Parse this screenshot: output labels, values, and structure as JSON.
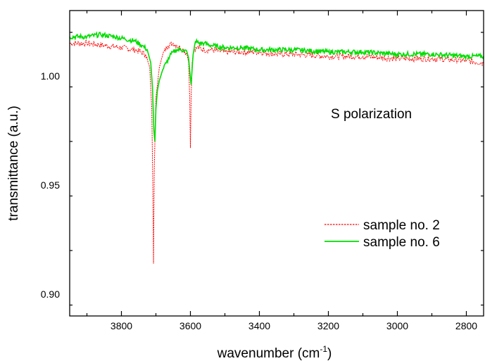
{
  "chart_data": {
    "type": "line",
    "xlabel": "wavenumber (cm",
    "xlabel_sup": "-1",
    "xlabel_end": ")",
    "ylabel": "transmittance (a.u.)",
    "annotation": "S polarization",
    "xlim": [
      3950,
      2750
    ],
    "ylim": [
      0.89,
      1.03
    ],
    "x_reversed": true,
    "x_ticks": [
      3800,
      3600,
      3400,
      3200,
      3000,
      2800
    ],
    "x_tick_labels": [
      "3800",
      "3600",
      "3400",
      "3200",
      "3000",
      "2800"
    ],
    "y_ticks": [
      0.9,
      0.95,
      1.0
    ],
    "y_tick_labels": [
      "0.90",
      "0.95",
      "1.00"
    ],
    "legend_position": "lower-right",
    "series": [
      {
        "name": "sample no. 2",
        "color": "#ff0000",
        "style": "dashed",
        "x": [
          3950,
          3900,
          3850,
          3800,
          3760,
          3730,
          3718,
          3712,
          3709,
          3707,
          3705,
          3700,
          3690,
          3680,
          3665,
          3650,
          3640,
          3630,
          3620,
          3610,
          3605,
          3602,
          3600,
          3598,
          3595,
          3590,
          3580,
          3560,
          3540,
          3500,
          3450,
          3400,
          3350,
          3300,
          3200,
          3100,
          3000,
          2900,
          2800,
          2750
        ],
        "y": [
          1.015,
          1.015,
          1.014,
          1.013,
          1.012,
          1.01,
          1.004,
          0.985,
          0.95,
          0.914,
          0.955,
          0.99,
          1.004,
          1.01,
          1.014,
          1.015,
          1.014,
          1.013,
          1.012,
          1.01,
          1.006,
          0.99,
          0.967,
          0.99,
          1.006,
          1.012,
          1.013,
          1.012,
          1.012,
          1.011,
          1.011,
          1.011,
          1.01,
          1.01,
          1.009,
          1.009,
          1.008,
          1.008,
          1.007,
          1.006
        ]
      },
      {
        "name": "sample no. 6",
        "color": "#00dd00",
        "style": "solid",
        "x": [
          3950,
          3900,
          3860,
          3820,
          3790,
          3760,
          3740,
          3725,
          3715,
          3710,
          3706,
          3703,
          3700,
          3696,
          3690,
          3680,
          3670,
          3660,
          3650,
          3640,
          3630,
          3620,
          3610,
          3605,
          3600,
          3598,
          3596,
          3592,
          3585,
          3575,
          3560,
          3540,
          3500,
          3450,
          3400,
          3350,
          3300,
          3200,
          3100,
          3000,
          2900,
          2800,
          2750
        ],
        "y": [
          1.018,
          1.018,
          1.019,
          1.018,
          1.017,
          1.016,
          1.014,
          1.012,
          1.006,
          0.995,
          0.975,
          0.97,
          0.985,
          0.993,
          0.998,
          1.003,
          1.006,
          1.009,
          1.011,
          1.012,
          1.012,
          1.012,
          1.011,
          1.008,
          0.999,
          0.996,
          1.001,
          1.01,
          1.016,
          1.015,
          1.015,
          1.014,
          1.013,
          1.013,
          1.012,
          1.012,
          1.012,
          1.011,
          1.011,
          1.01,
          1.01,
          1.009,
          1.009
        ]
      }
    ]
  }
}
